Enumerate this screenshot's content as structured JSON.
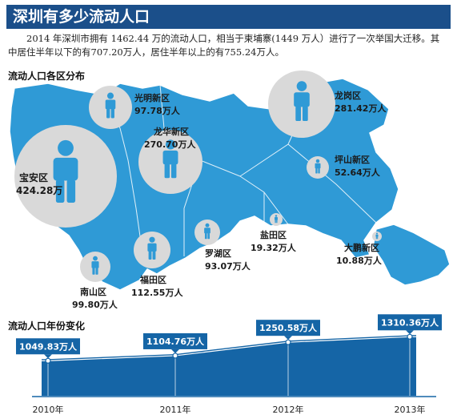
{
  "header": {
    "title": "深圳有多少流动人口",
    "intro": "2014 年深圳市拥有 1462.44 万的流动人口，相当于柬埔寨(1449 万人）进行了一次举国大迁移。其中居住半年以下的有707.20万人，居住半年以上的有755.24万人。"
  },
  "map_section": {
    "title": "流动人口各区分布"
  },
  "trend_section": {
    "title": "流动人口年份变化"
  },
  "colors": {
    "accent": "#2f9ad6",
    "dark_blue": "#1b4f8a",
    "circle": "#dcdcdc",
    "trend": "#1565a6"
  },
  "chart_data": [
    {
      "type": "bubble",
      "title": "流动人口各区分布",
      "unit": "万人",
      "districts": [
        {
          "name": "宝安区",
          "value": "424.28万",
          "num": 424.28
        },
        {
          "name": "光明新区",
          "value": "97.78万人",
          "num": 97.78
        },
        {
          "name": "龙华新区",
          "value": "270.70万人",
          "num": 270.7
        },
        {
          "name": "龙岗区",
          "value": "281.42万人",
          "num": 281.42
        },
        {
          "name": "坪山新区",
          "value": "52.64万人",
          "num": 52.64
        },
        {
          "name": "罗湖区",
          "value": "93.07万人",
          "num": 93.07
        },
        {
          "name": "盐田区",
          "value": "19.32万人",
          "num": 19.32
        },
        {
          "name": "大鹏新区",
          "value": "10.88万人",
          "num": 10.88
        },
        {
          "name": "福田区",
          "value": "112.55万人",
          "num": 112.55
        },
        {
          "name": "南山区",
          "value": "99.80万人",
          "num": 99.8
        }
      ]
    },
    {
      "type": "area",
      "title": "流动人口年份变化",
      "x": [
        "2010年",
        "2011年",
        "2012年",
        "2013年"
      ],
      "values": [
        1049.83,
        1104.76,
        1250.58,
        1310.36
      ],
      "value_labels": [
        "1049.83万人",
        "1104.76万人",
        "1250.58万人",
        "1310.36万人"
      ]
    }
  ]
}
